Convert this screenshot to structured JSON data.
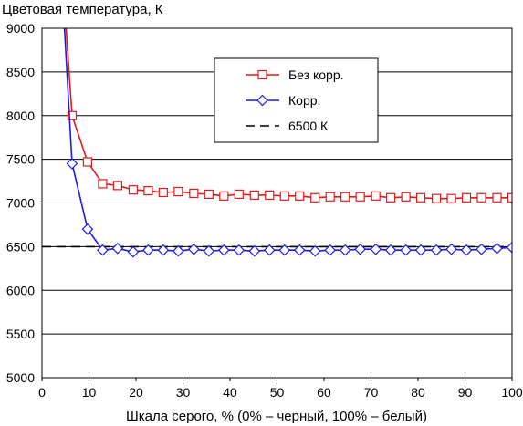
{
  "chart_data": {
    "type": "line",
    "title": "Цветовая температура, К",
    "xlabel": "Шкала серого, % (0% – черный, 100% – белый)",
    "ylabel": "",
    "xlim": [
      0,
      100
    ],
    "ylim": [
      5000,
      9000
    ],
    "x_ticks": [
      "0",
      "10",
      "20",
      "30",
      "40",
      "50",
      "60",
      "70",
      "80",
      "90",
      "100"
    ],
    "y_ticks": [
      "5000",
      "5500",
      "6000",
      "6500",
      "7000",
      "7500",
      "8000",
      "8500",
      "9000"
    ],
    "grid": "horizontal",
    "legend_position": "top-right",
    "series": [
      {
        "name": "Без корр.",
        "color": "#e41a1a",
        "marker": "square",
        "x": [
          3.2,
          6.4,
          9.7,
          12.9,
          16.1,
          19.4,
          22.6,
          25.8,
          29.0,
          32.3,
          35.5,
          38.7,
          41.9,
          45.2,
          48.4,
          51.6,
          54.8,
          58.1,
          61.3,
          64.5,
          67.7,
          71.0,
          74.2,
          77.4,
          80.6,
          83.9,
          87.1,
          90.3,
          93.5,
          96.8,
          100
        ],
        "values": [
          10500,
          8000,
          7470,
          7220,
          7200,
          7150,
          7140,
          7120,
          7130,
          7110,
          7100,
          7080,
          7100,
          7090,
          7090,
          7080,
          7080,
          7060,
          7070,
          7070,
          7070,
          7080,
          7060,
          7070,
          7060,
          7050,
          7050,
          7060,
          7060,
          7060,
          7060
        ]
      },
      {
        "name": "Корр.",
        "color": "#1a1ae6",
        "marker": "diamond",
        "x": [
          3.2,
          6.4,
          9.7,
          12.9,
          16.1,
          19.4,
          22.6,
          25.8,
          29.0,
          32.3,
          35.5,
          38.7,
          41.9,
          45.2,
          48.4,
          51.6,
          54.8,
          58.1,
          61.3,
          64.5,
          67.7,
          71.0,
          74.2,
          77.4,
          80.6,
          83.9,
          87.1,
          90.3,
          93.5,
          96.8,
          100
        ],
        "values": [
          10500,
          7450,
          6700,
          6460,
          6480,
          6440,
          6460,
          6460,
          6450,
          6470,
          6450,
          6460,
          6460,
          6450,
          6460,
          6460,
          6460,
          6450,
          6460,
          6460,
          6470,
          6470,
          6460,
          6460,
          6460,
          6460,
          6470,
          6460,
          6470,
          6480,
          6490
        ]
      },
      {
        "name": "6500 К",
        "color": "#000000",
        "dash": "dashed",
        "x": [
          0,
          100
        ],
        "values": [
          6500,
          6500
        ]
      }
    ]
  }
}
